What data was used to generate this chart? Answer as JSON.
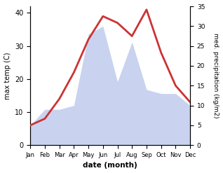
{
  "months": [
    "Jan",
    "Feb",
    "Mar",
    "Apr",
    "May",
    "Jun",
    "Jul",
    "Aug",
    "Sep",
    "Oct",
    "Nov",
    "Dec"
  ],
  "temperature": [
    6,
    8,
    14,
    22,
    32,
    39,
    37,
    33,
    41,
    28,
    18,
    13
  ],
  "precipitation": [
    5,
    9,
    9,
    10,
    28,
    30,
    16,
    26,
    14,
    13,
    13,
    10
  ],
  "temp_color": "#cc3333",
  "precip_fill_color": "#c0ccee",
  "left_ylim": [
    0,
    42
  ],
  "right_ylim": [
    0,
    35
  ],
  "left_yticks": [
    0,
    10,
    20,
    30,
    40
  ],
  "right_yticks": [
    0,
    5,
    10,
    15,
    20,
    25,
    30,
    35
  ],
  "left_ylabel": "max temp (C)",
  "right_ylabel": "med. precipitation (kg/m2)",
  "xlabel": "date (month)",
  "temp_linewidth": 2.0,
  "background_color": "#ffffff"
}
